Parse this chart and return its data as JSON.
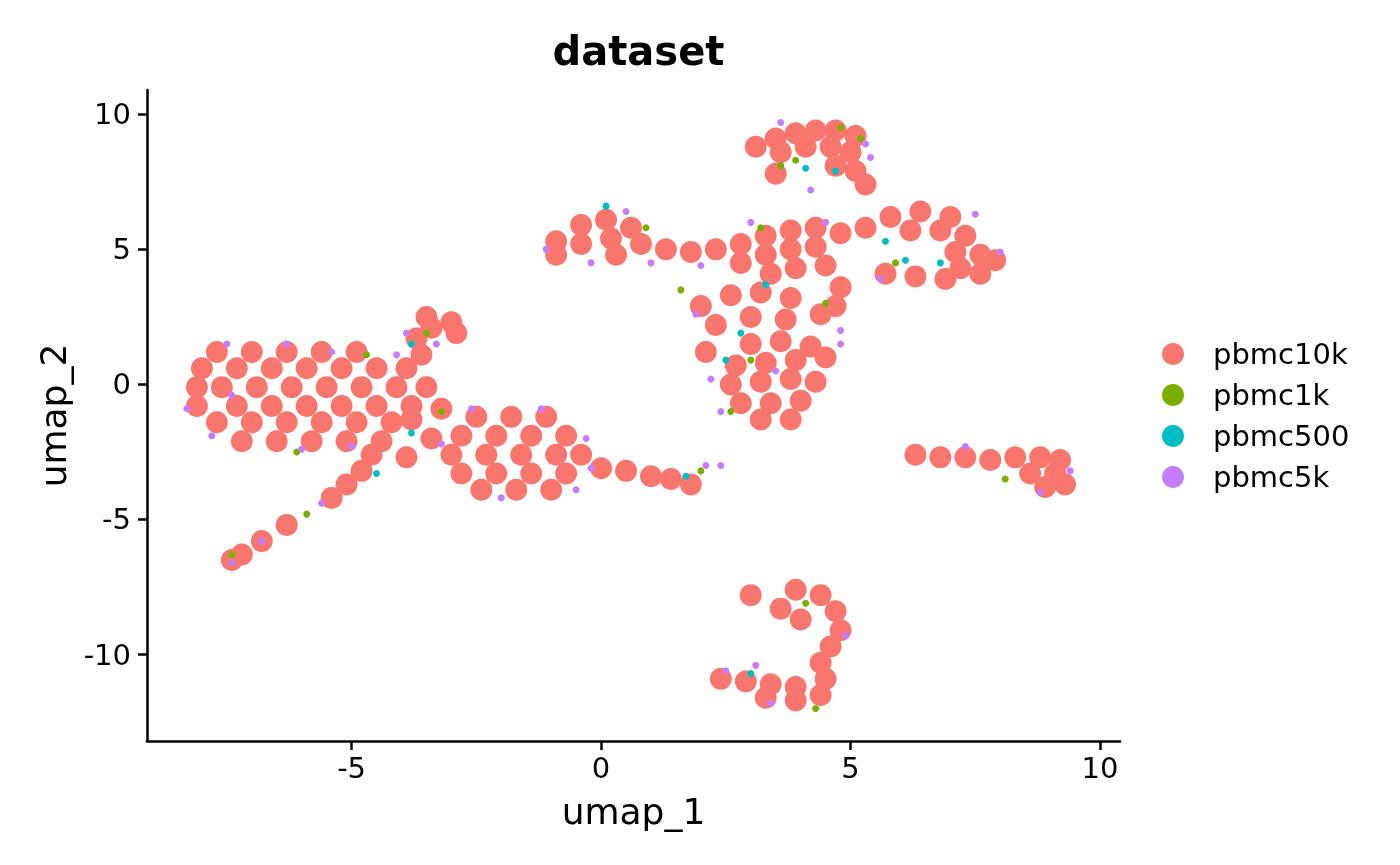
{
  "chart_data": {
    "type": "scatter",
    "title": "dataset",
    "xlabel": "umap_1",
    "ylabel": "umap_2",
    "xlim": [
      -9.1,
      10.4
    ],
    "ylim": [
      -13.2,
      10.9
    ],
    "xticks": [
      -5,
      0,
      5,
      10
    ],
    "yticks": [
      -10,
      -5,
      0,
      5,
      10
    ],
    "legend": "right",
    "marker": "circle",
    "series": [
      {
        "name": "pbmc10k",
        "color": "#f8766d",
        "x": [
          -7.7,
          -7.0,
          -6.3,
          -5.6,
          -4.9,
          -8.0,
          -7.3,
          -6.6,
          -5.9,
          -5.2,
          -4.5,
          -3.9,
          -8.1,
          -7.6,
          -6.9,
          -6.2,
          -5.5,
          -4.8,
          -4.1,
          -3.5,
          -8.1,
          -7.3,
          -6.6,
          -5.9,
          -5.2,
          -4.5,
          -3.8,
          -7.7,
          -7.0,
          -6.3,
          -5.6,
          -4.9,
          -4.2,
          -7.2,
          -6.5,
          -5.8,
          -5.1,
          -4.4,
          -3.6,
          -3.7,
          -3.4,
          -3.0,
          -3.5,
          -2.9,
          -4.6,
          -4.8,
          -5.1,
          -5.4,
          -6.3,
          -6.8,
          -7.2,
          -7.4,
          -3.8,
          -3.4,
          -3.9,
          -3.2,
          -2.5,
          -1.8,
          -1.1,
          -2.8,
          -2.1,
          -1.4,
          -0.7,
          -3.0,
          -2.3,
          -1.6,
          -0.9,
          -0.4,
          -2.8,
          -2.1,
          -1.4,
          -0.7,
          -2.4,
          -1.7,
          -1.0,
          0,
          0.5,
          1.0,
          1.4,
          1.8,
          -0.9,
          -0.4,
          0.1,
          0.6,
          -0.4,
          0.2,
          -0.9,
          0.8,
          0.3,
          1.3,
          1.8,
          2.3,
          2.8,
          3.3,
          3.8,
          4.3,
          4.8,
          2.8,
          3.3,
          3.8,
          4.3,
          3.4,
          3.9,
          4.5,
          4.8,
          4.7,
          5.3,
          5.8,
          6.4,
          7.0,
          6.2,
          6.8,
          7.3,
          7.1,
          7.6,
          7.9,
          7.2,
          7.6,
          6.9,
          6.3,
          5.7,
          3.1,
          3.5,
          3.9,
          4.3,
          4.7,
          5.1,
          3.6,
          4.1,
          4.6,
          5.0,
          4.7,
          5.1,
          3.5,
          5.3,
          2.0,
          2.6,
          3.2,
          3.8,
          4.4,
          2.3,
          3.0,
          3.7,
          2.1,
          3.0,
          3.6,
          4.2,
          2.7,
          3.3,
          3.9,
          4.5,
          2.6,
          3.2,
          3.8,
          4.3,
          2.8,
          3.4,
          4.0,
          3.2,
          3.8,
          6.3,
          6.8,
          7.3,
          7.8,
          8.3,
          8.8,
          9.2,
          8.6,
          9.1,
          8.9,
          9.3,
          3.0,
          3.6,
          4.0,
          3.9,
          4.4,
          4.7,
          4.8,
          4.6,
          4.4,
          2.4,
          2.9,
          3.4,
          3.9,
          4.5,
          3.3,
          3.9,
          4.4
        ],
        "values": [
          1.2,
          1.2,
          1.2,
          1.2,
          1.2,
          0.6,
          0.6,
          0.6,
          0.6,
          0.6,
          0.6,
          0.6,
          -0.1,
          -0.1,
          -0.1,
          -0.1,
          -0.1,
          -0.1,
          -0.1,
          -0.1,
          -0.8,
          -0.8,
          -0.8,
          -0.8,
          -0.8,
          -0.8,
          -0.8,
          -1.4,
          -1.4,
          -1.4,
          -1.4,
          -1.4,
          -1.4,
          -2.1,
          -2.1,
          -2.1,
          -2.1,
          -2.1,
          1.1,
          1.7,
          2.1,
          2.3,
          2.5,
          1.9,
          -2.6,
          -3.2,
          -3.7,
          -4.2,
          -5.2,
          -5.8,
          -6.3,
          -6.5,
          -1.3,
          -2.0,
          -2.7,
          -0.9,
          -1.2,
          -1.2,
          -1.2,
          -1.9,
          -1.9,
          -1.9,
          -1.9,
          -2.6,
          -2.6,
          -2.6,
          -2.6,
          -2.6,
          -3.3,
          -3.3,
          -3.3,
          -3.3,
          -3.9,
          -3.9,
          -3.9,
          -3.1,
          -3.2,
          -3.4,
          -3.5,
          -3.7,
          5.3,
          5.9,
          6.1,
          5.8,
          5.2,
          5.4,
          4.8,
          5.2,
          4.8,
          5.0,
          4.9,
          5.0,
          5.2,
          5.5,
          5.7,
          5.8,
          5.6,
          4.5,
          4.8,
          5.0,
          5.1,
          4.1,
          4.3,
          4.4,
          3.6,
          2.9,
          5.8,
          6.2,
          6.4,
          6.2,
          5.7,
          5.7,
          5.5,
          4.9,
          4.8,
          4.6,
          4.3,
          4.1,
          3.9,
          4.0,
          4.1,
          8.8,
          9.1,
          9.3,
          9.4,
          9.4,
          9.2,
          8.6,
          8.8,
          8.8,
          8.6,
          8.1,
          7.9,
          7.8,
          7.4,
          2.9,
          3.3,
          3.4,
          3.2,
          2.6,
          2.2,
          2.5,
          2.4,
          1.2,
          1.5,
          1.6,
          1.4,
          0.7,
          0.8,
          0.9,
          1.0,
          0,
          0.1,
          0.2,
          0.1,
          -0.7,
          -0.7,
          -0.6,
          -1.3,
          -1.3,
          -2.6,
          -2.7,
          -2.7,
          -2.8,
          -2.7,
          -2.7,
          -2.8,
          -3.3,
          -3.3,
          -3.8,
          -3.7,
          -7.8,
          -8.3,
          -8.7,
          -7.6,
          -7.8,
          -8.4,
          -9.1,
          -9.7,
          -10.3,
          -10.9,
          -11.0,
          -11.1,
          -11.2,
          -10.9,
          -11.6,
          -11.7,
          -11.5
        ]
      },
      {
        "name": "pbmc1k",
        "color": "#7cae00",
        "x": [
          -4.7,
          -6.1,
          -5.9,
          -3.5,
          -3.2,
          3.6,
          3.9,
          4.8,
          5.2,
          0.9,
          1.6,
          3.2,
          5.9,
          3.0,
          4.5,
          2.6,
          8.1,
          4.1,
          4.3,
          2.0,
          -7.4
        ],
        "values": [
          1.1,
          -2.5,
          -4.8,
          1.9,
          -1.0,
          8.1,
          8.3,
          9.5,
          9.1,
          5.8,
          3.5,
          5.8,
          4.5,
          0.9,
          3.0,
          -1.0,
          -3.5,
          -8.1,
          -12.0,
          -3.2,
          -6.3
        ]
      },
      {
        "name": "pbmc500",
        "color": "#00bfc4",
        "x": [
          -3.8,
          -4.5,
          -3.8,
          4.1,
          4.7,
          5.7,
          6.1,
          6.8,
          2.8,
          2.5,
          3.3,
          3.0,
          1.7,
          0.1
        ],
        "values": [
          1.5,
          -3.3,
          -1.8,
          8.0,
          7.9,
          5.3,
          4.6,
          4.5,
          1.9,
          0.9,
          3.7,
          -10.7,
          -3.4,
          6.6
        ]
      },
      {
        "name": "pbmc5k",
        "color": "#c77cff",
        "x": [
          -8.3,
          -7.5,
          -6.3,
          -5.4,
          -7.8,
          -6.0,
          -5.0,
          -7.4,
          -4.1,
          -3.9,
          -3.3,
          -5.6,
          -6.8,
          -7.4,
          -2.6,
          -1.2,
          -0.3,
          -0.2,
          -2.0,
          -0.5,
          -3.2,
          2.1,
          2.4,
          -1.1,
          0.5,
          -0.2,
          1.0,
          2.0,
          4.5,
          3.0,
          1.9,
          2.2,
          2.4,
          4.8,
          3.5,
          4.8,
          8.0,
          7.5,
          5.6,
          3.6,
          5.3,
          5.4,
          4.2,
          7.3,
          9.4,
          8.8,
          4.9,
          2.5,
          3.4,
          3.1
        ],
        "values": [
          -0.9,
          1.5,
          1.5,
          1.2,
          -1.9,
          -2.4,
          -2.3,
          -0.4,
          1.1,
          1.9,
          1.5,
          -4.4,
          -5.8,
          -6.6,
          -0.9,
          -0.9,
          -2.0,
          -3.1,
          -4.2,
          -3.9,
          -2.2,
          -3.0,
          -3.0,
          5.0,
          6.4,
          4.5,
          4.5,
          4.4,
          6.0,
          6.0,
          2.6,
          0.2,
          -1.0,
          1.5,
          0.5,
          2.0,
          4.9,
          6.3,
          3.9,
          9.7,
          8.9,
          8.4,
          7.2,
          -2.3,
          -3.2,
          -4.0,
          -9.3,
          -10.6,
          -11.8,
          -10.4
        ]
      }
    ]
  }
}
